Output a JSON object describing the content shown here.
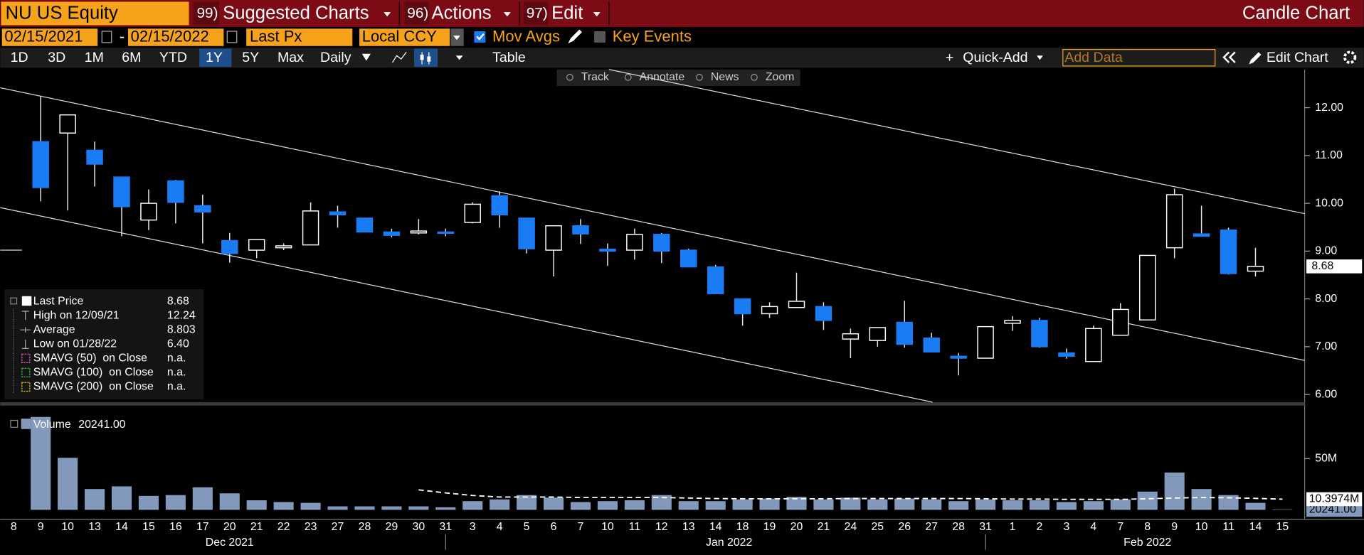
{
  "ui": {
    "header": {
      "ticker": "NU US Equity",
      "menus": [
        {
          "key": "99)",
          "label": "Suggested Charts"
        },
        {
          "key": "96)",
          "label": "Actions"
        },
        {
          "key": "97)",
          "label": "Edit"
        }
      ],
      "chart_type": "Candle Chart"
    },
    "controls": {
      "start_date": "02/15/2021",
      "separator": "-",
      "end_date": "02/15/2022",
      "field": "Last Px",
      "currency": "Local CCY",
      "mov_avgs": "Mov Avgs",
      "key_events": "Key Events"
    },
    "toolbar": {
      "ranges": [
        "1D",
        "3D",
        "1M",
        "6M",
        "YTD",
        "1Y",
        "5Y",
        "Max"
      ],
      "active_range": "1Y",
      "frequency": "Daily",
      "table": "Table",
      "quick_add": "Quick-Add",
      "add_data": "Add Data",
      "edit_chart": "Edit Chart",
      "tools": [
        "Track",
        "Annotate",
        "News",
        "Zoom"
      ]
    }
  },
  "chart_data": [
    {
      "type": "candlestick",
      "categories": [
        "8",
        "9",
        "10",
        "13",
        "14",
        "15",
        "16",
        "17",
        "20",
        "21",
        "22",
        "23",
        "27",
        "28",
        "29",
        "30",
        "31",
        "3",
        "4",
        "5",
        "6",
        "7",
        "10",
        "11",
        "12",
        "13",
        "14",
        "18",
        "19",
        "20",
        "21",
        "24",
        "25",
        "26",
        "27",
        "28",
        "31",
        "1",
        "2",
        "3",
        "4",
        "7",
        "8",
        "9",
        "10",
        "11",
        "14",
        "15"
      ],
      "months": [
        "Dec 2021",
        "Jan 2022",
        "Feb 2022"
      ],
      "up_color": "#000000",
      "down_color": "#1a7cf5",
      "ylim": [
        5.84,
        12.8
      ],
      "yticks": [
        {
          "value": 6,
          "label": "6.00"
        },
        {
          "value": 7,
          "label": "7.00"
        },
        {
          "value": 8,
          "label": "8.00"
        },
        {
          "value": 9,
          "label": "9.00"
        },
        {
          "value": 10,
          "label": "10.00"
        },
        {
          "value": 11,
          "label": "11.00"
        },
        {
          "value": 12,
          "label": "12.00"
        }
      ],
      "series": [
        {
          "open": [
            null,
            11.29,
            11.47,
            11.11,
            10.55,
            9.65,
            10.47,
            9.95,
            9.22,
            9.02,
            9.07,
            9.13,
            9.82,
            9.69,
            9.4,
            9.38,
            9.4,
            9.6,
            10.16,
            9.69,
            9.02,
            9.53,
            9.04,
            9.02,
            9.35,
            9.02,
            8.67,
            8.0,
            7.69,
            7.82,
            7.84,
            7.16,
            7.13,
            7.51,
            7.18,
            6.8,
            6.76,
            7.49,
            7.55,
            6.87,
            6.69,
            7.24,
            7.56,
            9.07,
            9.36,
            9.44,
            8.58,
            null
          ],
          "high": [
            null,
            12.24,
            11.85,
            11.29,
            10.55,
            10.29,
            10.49,
            10.18,
            9.38,
            9.24,
            9.16,
            10.02,
            9.95,
            9.69,
            9.47,
            9.67,
            9.47,
            10.02,
            10.25,
            9.69,
            9.53,
            9.67,
            9.16,
            9.47,
            9.38,
            9.05,
            8.71,
            8.0,
            7.93,
            8.55,
            7.93,
            7.38,
            7.4,
            7.96,
            7.29,
            6.87,
            7.42,
            7.64,
            7.6,
            6.96,
            7.44,
            7.91,
            8.91,
            10.31,
            9.95,
            9.49,
            9.07,
            null
          ],
          "low": [
            null,
            10.04,
            9.85,
            10.35,
            9.31,
            9.44,
            9.58,
            9.16,
            8.76,
            8.85,
            9.02,
            9.13,
            9.49,
            9.4,
            9.29,
            9.35,
            9.31,
            9.58,
            9.49,
            8.95,
            8.47,
            9.15,
            8.69,
            8.82,
            8.75,
            8.67,
            8.11,
            7.44,
            7.6,
            7.82,
            7.35,
            6.76,
            7.0,
            6.98,
            6.89,
            6.4,
            6.76,
            7.33,
            6.98,
            6.75,
            6.69,
            7.24,
            7.56,
            8.85,
            9.31,
            8.51,
            8.47,
            null
          ],
          "close": [
            null,
            10.33,
            11.85,
            10.82,
            9.93,
            10.0,
            10.02,
            9.82,
            8.95,
            9.24,
            9.11,
            9.84,
            9.76,
            9.4,
            9.33,
            9.42,
            9.38,
            9.98,
            9.76,
            9.05,
            9.53,
            9.36,
            9.0,
            9.35,
            9.0,
            8.67,
            8.11,
            7.69,
            7.84,
            7.95,
            7.55,
            7.27,
            7.4,
            7.05,
            6.89,
            6.76,
            7.42,
            7.55,
            7.0,
            6.8,
            7.38,
            7.78,
            8.91,
            10.18,
            9.31,
            8.53,
            8.68,
            null
          ]
        }
      ],
      "stats": [
        {
          "label": "Last Price",
          "value": "8.68"
        },
        {
          "label": "High on 12/09/21",
          "value": "12.24"
        },
        {
          "label": "Average",
          "value": "8.803"
        },
        {
          "label": "Low on 01/28/22",
          "value": "6.40"
        },
        {
          "label": "SMAVG (50)  on Close",
          "value": "n.a."
        },
        {
          "label": "SMAVG (100)  on Close",
          "value": "n.a."
        },
        {
          "label": "SMAVG (200)  on Close",
          "value": "n.a."
        }
      ]
    },
    {
      "type": "bar",
      "ylim": [
        0,
        100800000
      ],
      "yticks": [
        {
          "value": 50000000,
          "label": "50M"
        }
      ],
      "series": [
        {
          "name": "Volume",
          "color": "#8299bb",
          "values": [
            null,
            90600000,
            50800000,
            20300000,
            22900000,
            13600000,
            14400000,
            22000000,
            16100000,
            9300000,
            7600000,
            6800000,
            3400000,
            3400000,
            3400000,
            3400000,
            2500000,
            8500000,
            10200000,
            14400000,
            11900000,
            7600000,
            8500000,
            9300000,
            14400000,
            8500000,
            8500000,
            10200000,
            11000000,
            12700000,
            10200000,
            11900000,
            10200000,
            11000000,
            10200000,
            8500000,
            10200000,
            9300000,
            9300000,
            7600000,
            8500000,
            10200000,
            17800000,
            36400000,
            20300000,
            14400000,
            6800000,
            20241
          ],
          "value_labels": [
            null,
            null,
            null,
            null,
            null,
            null,
            null,
            null,
            null,
            null,
            null,
            null,
            null,
            null,
            null,
            null,
            null,
            null,
            null,
            null,
            null,
            null,
            null,
            null,
            null,
            null,
            null,
            null,
            null,
            null,
            null,
            null,
            null,
            null,
            null,
            null,
            null,
            null,
            null,
            null,
            null,
            null,
            null,
            null,
            null,
            null,
            null,
            "20241.00"
          ]
        },
        {
          "type": "line",
          "color": "#ffffff",
          "values": [
            null,
            null,
            null,
            null,
            null,
            null,
            null,
            null,
            null,
            null,
            null,
            null,
            null,
            null,
            null,
            19500000,
            16500000,
            14000000,
            12500000,
            12500000,
            12500000,
            12000000,
            12000000,
            12000000,
            12000000,
            11500000,
            11000000,
            10800000,
            10800000,
            10800000,
            10800000,
            11000000,
            11000000,
            11000000,
            11000000,
            11000000,
            10800000,
            10500000,
            10500000,
            10200000,
            10200000,
            10200000,
            10800000,
            11500000,
            12000000,
            11800000,
            11200000,
            10397400
          ],
          "value_labels": [
            null,
            null,
            null,
            null,
            null,
            null,
            null,
            null,
            null,
            null,
            null,
            null,
            null,
            null,
            null,
            null,
            null,
            null,
            null,
            null,
            null,
            null,
            null,
            null,
            null,
            null,
            null,
            null,
            null,
            null,
            null,
            null,
            null,
            null,
            null,
            null,
            null,
            null,
            null,
            null,
            null,
            null,
            null,
            null,
            null,
            null,
            null,
            "10.3974M"
          ]
        }
      ]
    }
  ]
}
